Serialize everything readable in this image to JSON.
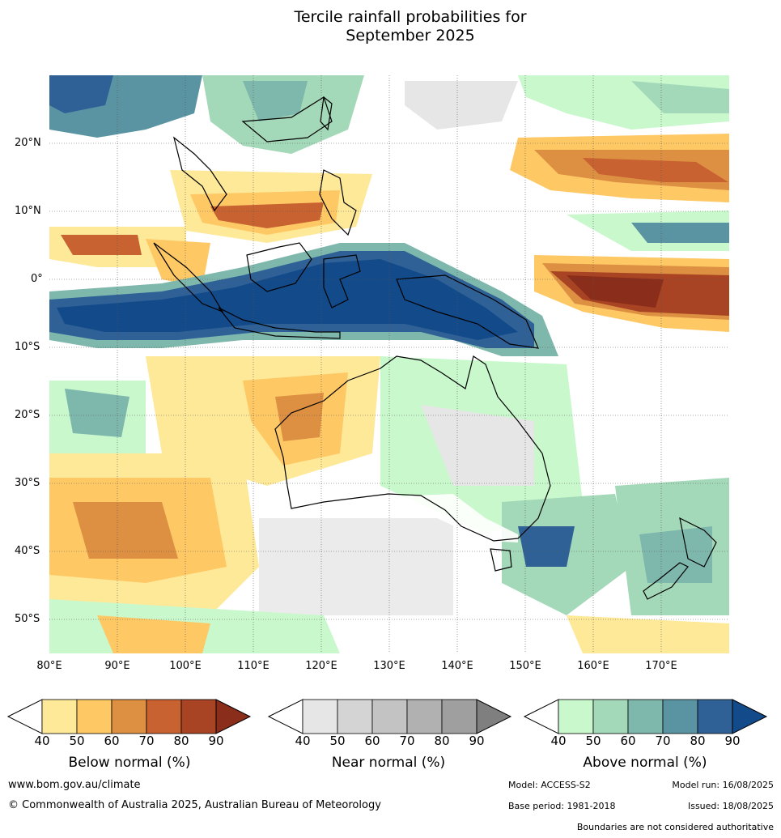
{
  "title_line1": "Tercile rainfall probabilities for",
  "title_line2": "September 2025",
  "map": {
    "lat_labels": [
      "20°N",
      "10°N",
      "0°",
      "10°S",
      "20°S",
      "30°S",
      "40°S",
      "50°S"
    ],
    "lon_labels": [
      "80°E",
      "90°E",
      "100°E",
      "110°E",
      "120°E",
      "130°E",
      "140°E",
      "150°E",
      "160°E",
      "170°E"
    ]
  },
  "legends": [
    {
      "title": "Below normal (%)",
      "ticks": [
        "40",
        "50",
        "60",
        "70",
        "80",
        "90"
      ],
      "colors": [
        "#fee999",
        "#fec865",
        "#dd8f42",
        "#c86230",
        "#a84423",
        "#8a2d1a"
      ]
    },
    {
      "title": "Near normal (%)",
      "ticks": [
        "40",
        "50",
        "60",
        "70",
        "80",
        "90"
      ],
      "colors": [
        "#e6e6e6",
        "#d4d4d4",
        "#c3c3c3",
        "#b1b1b1",
        "#9f9f9f",
        "#7f7f7f"
      ]
    },
    {
      "title": "Above normal (%)",
      "ticks": [
        "40",
        "50",
        "60",
        "70",
        "80",
        "90"
      ],
      "colors": [
        "#c8f8cc",
        "#a3d8b8",
        "#7eb7ac",
        "#5a94a2",
        "#2f6197",
        "#124a8a"
      ]
    }
  ],
  "footer": {
    "website": "www.bom.gov.au/climate",
    "copyright": "© Commonwealth of Australia 2025, Australian Bureau of Meteorology",
    "model": "Model: ACCESS-S2",
    "model_run": "Model run: 16/08/2025",
    "base_period": "Base period: 1981-2018",
    "issued": "Issued: 18/08/2025",
    "boundaries": "Boundaries are not considered authoritative"
  }
}
